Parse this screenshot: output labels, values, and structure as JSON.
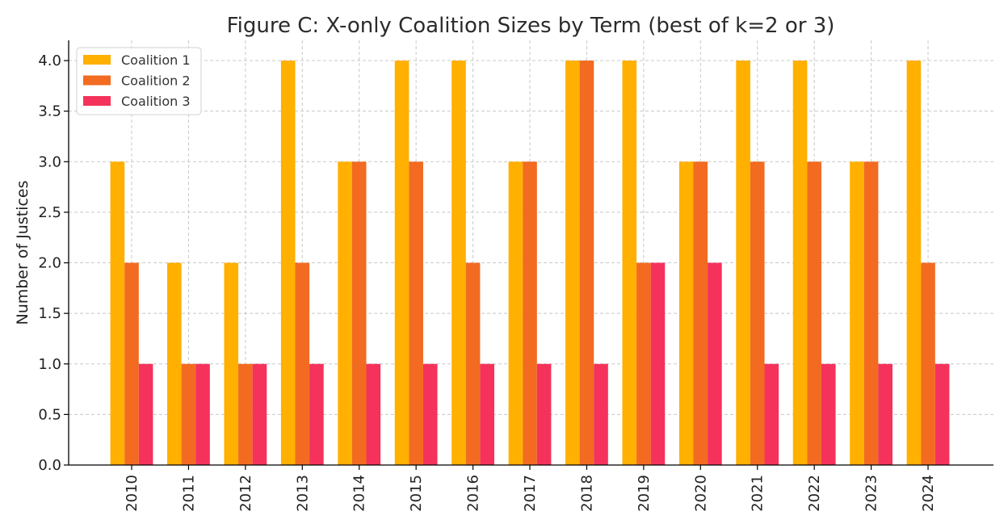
{
  "chart_data": {
    "type": "bar",
    "title": "Figure C: X-only Coalition Sizes by Term (best of k=2 or 3)",
    "xlabel": "",
    "ylabel": "Number of Justices",
    "categories": [
      "2010",
      "2011",
      "2012",
      "2013",
      "2014",
      "2015",
      "2016",
      "2017",
      "2018",
      "2019",
      "2020",
      "2021",
      "2022",
      "2023",
      "2024"
    ],
    "series": [
      {
        "name": "Coalition 1",
        "color": "#FFB000",
        "values": [
          3,
          2,
          2,
          4,
          3,
          4,
          4,
          3,
          4,
          4,
          3,
          4,
          4,
          3,
          4
        ]
      },
      {
        "name": "Coalition 2",
        "color": "#F26B21",
        "values": [
          2,
          1,
          1,
          2,
          3,
          3,
          2,
          3,
          4,
          2,
          3,
          3,
          3,
          3,
          2
        ]
      },
      {
        "name": "Coalition 3",
        "color": "#F5325B",
        "values": [
          1,
          1,
          1,
          1,
          1,
          1,
          1,
          1,
          1,
          2,
          2,
          1,
          1,
          1,
          1
        ]
      }
    ],
    "ylim": [
      0,
      4.2
    ],
    "yticks": [
      "0.0",
      "0.5",
      "1.0",
      "1.5",
      "2.0",
      "2.5",
      "3.0",
      "3.5",
      "4.0"
    ],
    "grid": true,
    "legend_position": "top-left"
  }
}
